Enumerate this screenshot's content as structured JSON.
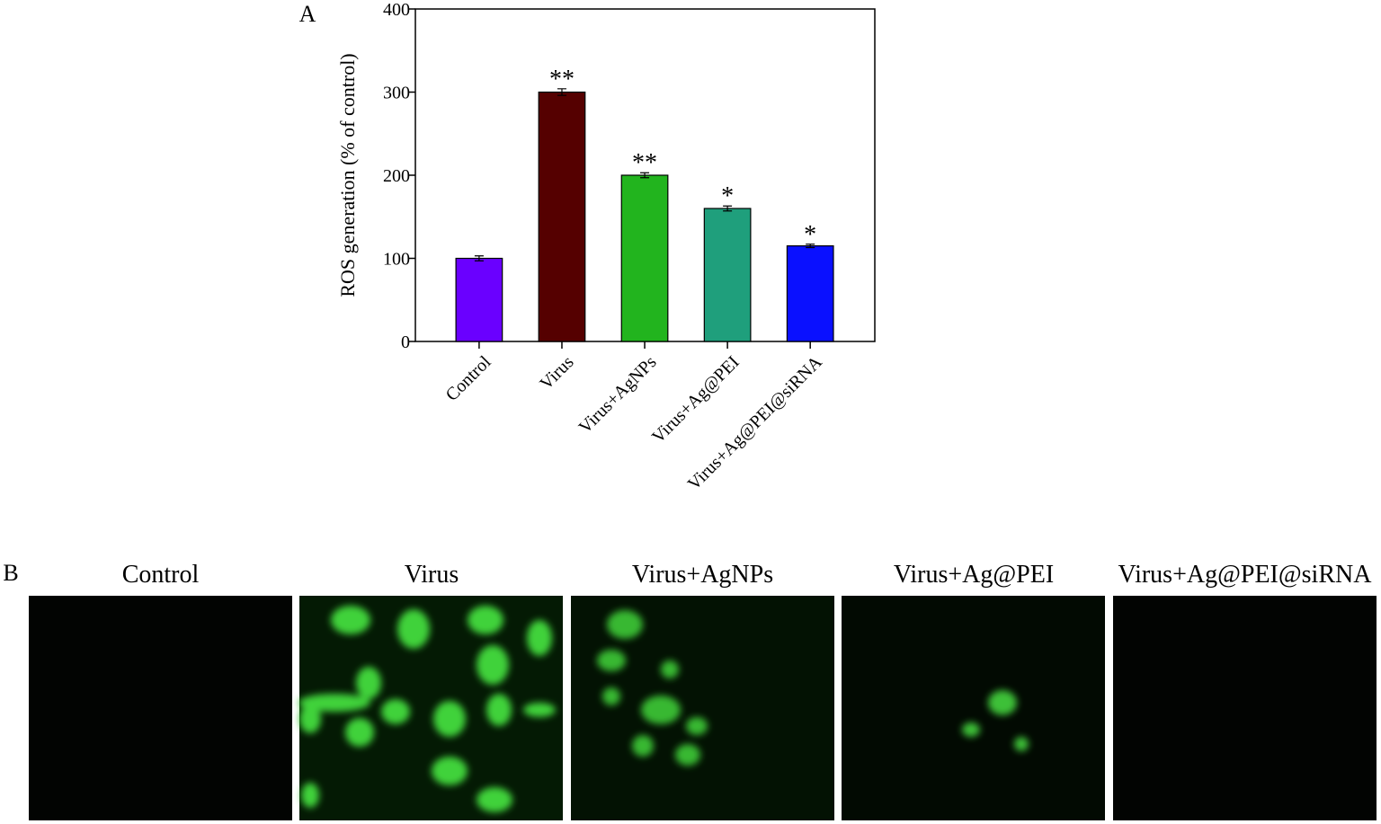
{
  "panel_a_label": "A",
  "chart_data": {
    "type": "bar",
    "ylabel": "ROS generation  (% of control)",
    "categories": [
      "Control",
      "Virus",
      "Virus+AgNPs",
      "Virus+Ag@PEI",
      "Virus+Ag@PEI@siRNA"
    ],
    "values": [
      100,
      300,
      200,
      160,
      115
    ],
    "errors": [
      3,
      4,
      3,
      3,
      2
    ],
    "annotations": [
      null,
      "**",
      "**",
      "*",
      "*"
    ],
    "colors": [
      "#6a00ff",
      "#550000",
      "#22b41e",
      "#1f9f7c",
      "#0a10ff"
    ],
    "ylim": [
      0,
      400
    ],
    "yticks": [
      0,
      100,
      200,
      300,
      400
    ],
    "grid": false
  },
  "panel_b": {
    "label": "B",
    "titles": [
      "Control",
      "Virus",
      "Virus+AgNPs",
      "Virus+Ag@PEI",
      "Virus+Ag@PEI@siRNA"
    ]
  }
}
